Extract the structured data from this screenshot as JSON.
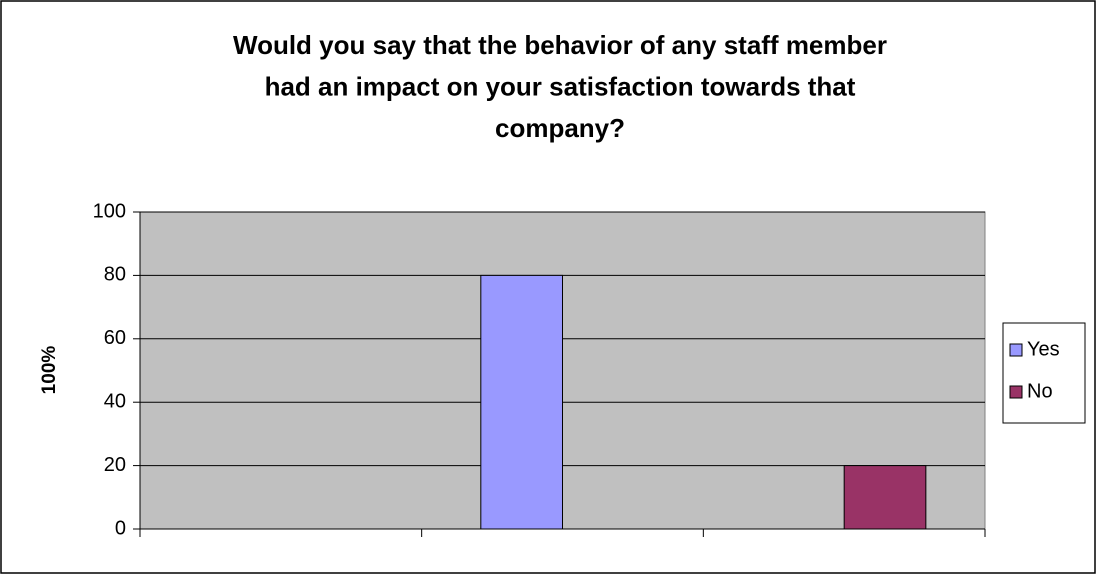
{
  "chart_data": {
    "type": "bar",
    "title": [
      "Would you say that the behavior of any staff member",
      "had an impact on your satisfaction towards that",
      "company?"
    ],
    "ylabel": "100%",
    "categories": [
      null,
      null,
      null
    ],
    "series": [
      {
        "name": "Yes",
        "color": "#9999ff",
        "values": [
          0,
          80,
          0
        ]
      },
      {
        "name": "No",
        "color": "#993366",
        "values": [
          0,
          0,
          20
        ]
      }
    ],
    "ylim": [
      0,
      100
    ],
    "yticks": [
      0,
      20,
      40,
      60,
      80,
      100
    ],
    "grid": true,
    "legend": "right"
  }
}
